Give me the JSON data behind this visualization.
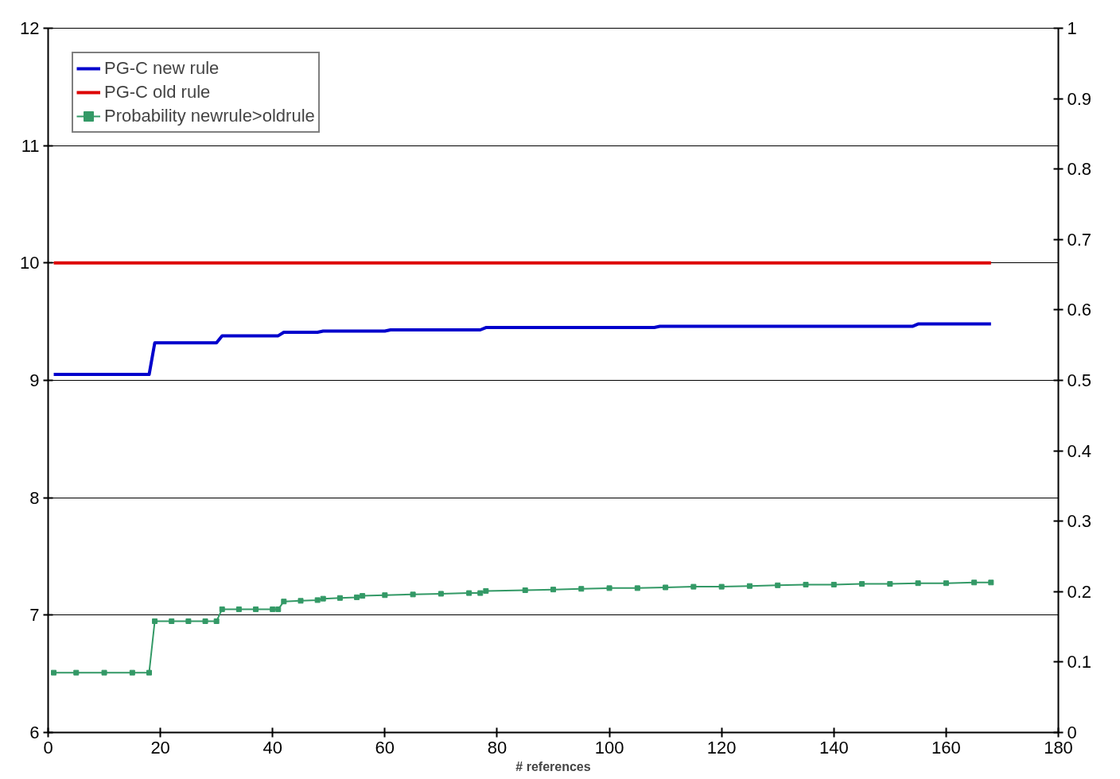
{
  "chart_data": {
    "type": "line",
    "xlabel": "# references",
    "xlim": [
      0,
      180
    ],
    "xticks": [
      0,
      20,
      40,
      60,
      80,
      100,
      120,
      140,
      160,
      180
    ],
    "ylim": [
      6,
      12
    ],
    "yticks": [
      6,
      7,
      8,
      9,
      10,
      11,
      12
    ],
    "y2lim": [
      0,
      1
    ],
    "y2ticks": [
      0,
      0.1,
      0.2,
      0.3,
      0.4,
      0.5,
      0.6,
      0.7,
      0.8,
      0.9,
      1
    ],
    "grid": "y",
    "legend": "top left",
    "line_style": "solid",
    "series": [
      {
        "name": "PG-C new rule",
        "color": "#0000cc",
        "marker": "none",
        "x": [
          1,
          18,
          19,
          30,
          31,
          41,
          42,
          48,
          49,
          60,
          61,
          77,
          78,
          108,
          109,
          154,
          155,
          168
        ],
        "values": [
          9.05,
          9.05,
          9.32,
          9.32,
          9.38,
          9.38,
          9.41,
          9.41,
          9.42,
          9.42,
          9.43,
          9.43,
          9.45,
          9.45,
          9.46,
          9.46,
          9.48,
          9.48
        ]
      },
      {
        "name": "PG-C old rule",
        "color": "#dd0000",
        "marker": "none",
        "x": [
          1,
          168
        ],
        "values": [
          10,
          10
        ]
      },
      {
        "name": "Probability newrule>oldrule",
        "color": "#339966",
        "marker": "square",
        "axis": "y2",
        "x": [
          1,
          5,
          10,
          15,
          18,
          19,
          22,
          25,
          28,
          30,
          31,
          34,
          37,
          40,
          41,
          42,
          45,
          48,
          49,
          52,
          55,
          56,
          60,
          65,
          70,
          75,
          77,
          78,
          85,
          90,
          95,
          100,
          105,
          110,
          115,
          120,
          125,
          130,
          135,
          140,
          145,
          150,
          155,
          160,
          165,
          168
        ],
        "values": [
          0.085,
          0.085,
          0.085,
          0.085,
          0.085,
          0.158,
          0.158,
          0.158,
          0.158,
          0.158,
          0.175,
          0.175,
          0.175,
          0.175,
          0.175,
          0.186,
          0.187,
          0.188,
          0.19,
          0.191,
          0.192,
          0.194,
          0.195,
          0.196,
          0.197,
          0.198,
          0.198,
          0.201,
          0.202,
          0.203,
          0.204,
          0.205,
          0.205,
          0.206,
          0.207,
          0.207,
          0.208,
          0.209,
          0.21,
          0.21,
          0.211,
          0.211,
          0.212,
          0.212,
          0.213,
          0.213
        ]
      }
    ]
  }
}
